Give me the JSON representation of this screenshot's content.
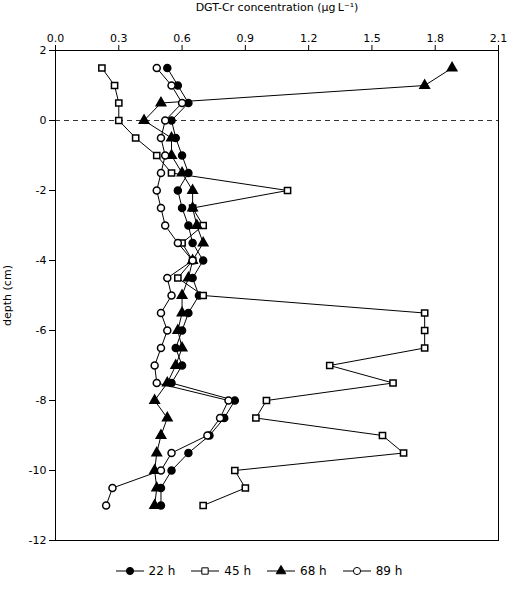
{
  "chart_data": {
    "type": "line",
    "xlabel": "DGT-Cr concentration (μg L⁻¹)",
    "ylabel": "depth (cm)",
    "xlim": [
      0.0,
      2.1
    ],
    "ylim": [
      -12,
      2
    ],
    "xticks": [
      {
        "value": 0.0,
        "label": "0.0"
      },
      0.3,
      0.6,
      0.9,
      1.2,
      1.5,
      1.8,
      2.1
    ],
    "yticks": [
      2,
      0,
      -2,
      -4,
      -6,
      -8,
      -10,
      -12
    ],
    "y": [
      1.5,
      1.0,
      0.5,
      0.0,
      -0.5,
      -1.0,
      -1.5,
      -2.0,
      -2.5,
      -3.0,
      -3.5,
      -4.0,
      -4.5,
      -5.0,
      -5.5,
      -6.0,
      -6.5,
      -7.0,
      -7.5,
      -8.0,
      -8.5,
      -9.0,
      -9.5,
      -10.0,
      -10.5,
      -11.0
    ],
    "hline": {
      "y": 0,
      "line_style": "dashed"
    },
    "legend": "bottom",
    "series": [
      {
        "name": "22 h",
        "color": "black",
        "marker": "circle",
        "values": [
          0.53,
          0.58,
          0.63,
          0.55,
          0.57,
          0.6,
          0.63,
          0.58,
          0.6,
          0.63,
          0.65,
          0.7,
          0.65,
          0.68,
          0.63,
          0.6,
          0.57,
          0.6,
          0.55,
          0.85,
          0.8,
          0.73,
          0.63,
          0.55,
          0.5,
          0.5
        ]
      },
      {
        "name": "45 h",
        "color": "black",
        "marker": "open-square",
        "values": [
          0.22,
          0.28,
          0.3,
          0.3,
          0.38,
          0.48,
          0.55,
          1.1,
          0.65,
          0.7,
          0.6,
          0.65,
          0.58,
          0.7,
          1.75,
          1.75,
          1.75,
          1.3,
          1.6,
          1.0,
          0.95,
          1.55,
          1.65,
          0.85,
          0.9,
          0.7
        ]
      },
      {
        "name": "68 h",
        "color": "black",
        "marker": "triangle",
        "values": [
          1.88,
          1.75,
          0.5,
          0.42,
          0.55,
          0.55,
          0.6,
          0.65,
          0.65,
          0.67,
          0.7,
          0.65,
          0.63,
          0.6,
          0.6,
          0.58,
          0.6,
          0.57,
          0.53,
          0.47,
          0.53,
          0.5,
          0.48,
          0.47,
          0.48,
          0.47
        ]
      },
      {
        "name": "89 h",
        "color": "black",
        "marker": "open-circle",
        "values": [
          0.48,
          0.55,
          0.6,
          0.52,
          0.5,
          0.52,
          0.5,
          0.48,
          0.5,
          0.52,
          0.58,
          0.65,
          0.53,
          0.55,
          0.5,
          0.53,
          0.5,
          0.47,
          0.48,
          0.82,
          0.78,
          0.72,
          0.55,
          0.5,
          0.27,
          0.24
        ]
      }
    ]
  }
}
